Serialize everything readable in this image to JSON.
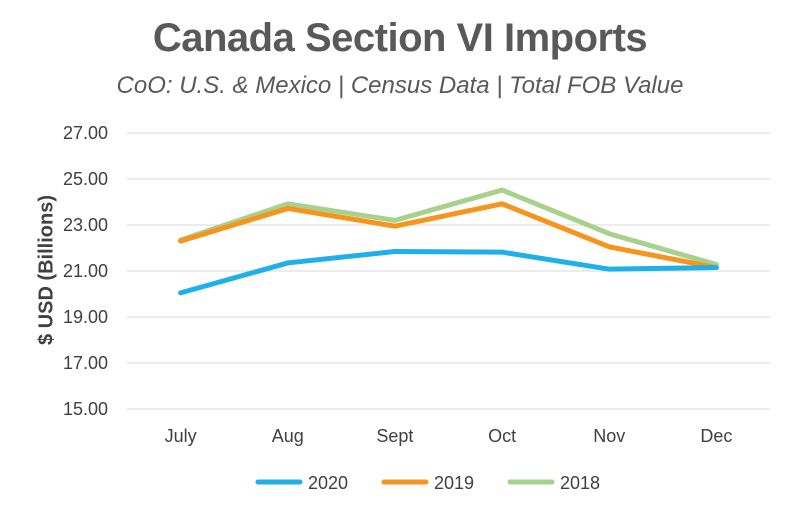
{
  "chart_data": {
    "type": "line",
    "title": "Canada Section VI Imports",
    "subtitle": "CoO: U.S. & Mexico | Census Data | Total FOB Value",
    "xlabel": "",
    "ylabel": "$ USD (Billions)",
    "categories": [
      "July",
      "Aug",
      "Sept",
      "Oct",
      "Nov",
      "Dec"
    ],
    "yticks": [
      "15.00",
      "17.00",
      "19.00",
      "21.00",
      "23.00",
      "25.00",
      "27.00"
    ],
    "ylim": [
      15,
      27
    ],
    "grid": true,
    "legend_position": "bottom",
    "series": [
      {
        "name": "2020",
        "color": "#1fb0ea",
        "values": [
          20.05,
          21.35,
          21.85,
          21.82,
          21.08,
          21.15
        ]
      },
      {
        "name": "2019",
        "color": "#f7941d",
        "values": [
          22.3,
          23.72,
          22.95,
          23.92,
          22.05,
          21.15
        ]
      },
      {
        "name": "2018",
        "color": "#a9d18e",
        "values": [
          22.35,
          23.92,
          23.2,
          24.52,
          22.62,
          21.28
        ]
      }
    ]
  }
}
